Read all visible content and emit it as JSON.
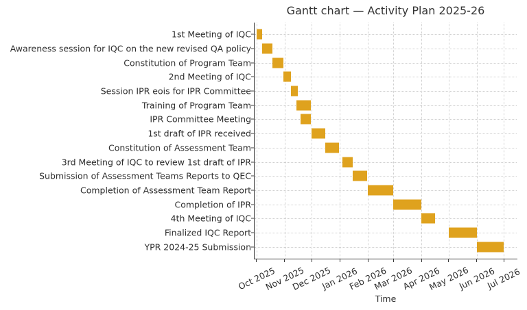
{
  "chart_data": {
    "type": "gantt",
    "title": "Gantt chart — Activity Plan 2025-26",
    "xlabel": "Time",
    "ylabel": "",
    "bar_color": "#DFA21E",
    "grid": "dotted, both axes",
    "legend": "none",
    "x_domain": [
      "2025-09-29",
      "2026-07-15"
    ],
    "x_ticks": [
      {
        "label": "Oct 2025",
        "date": "2025-10-01"
      },
      {
        "label": "Nov 2025",
        "date": "2025-11-01"
      },
      {
        "label": "Dec 2025",
        "date": "2025-12-01"
      },
      {
        "label": "Jan 2026",
        "date": "2026-01-01"
      },
      {
        "label": "Feb 2026",
        "date": "2026-02-01"
      },
      {
        "label": "Mar 2026",
        "date": "2026-03-01"
      },
      {
        "label": "Apr 2026",
        "date": "2026-04-01"
      },
      {
        "label": "May 2026",
        "date": "2026-05-01"
      },
      {
        "label": "Jun 2026",
        "date": "2026-06-01"
      },
      {
        "label": "Jul 2026",
        "date": "2026-07-01"
      }
    ],
    "tasks": [
      {
        "label": "1st Meeting of IQC",
        "start": "2025-10-01",
        "end": "2025-10-07"
      },
      {
        "label": "Awareness session for IQC on the new revised QA policy",
        "start": "2025-10-07",
        "end": "2025-10-19"
      },
      {
        "label": "Constitution of Program Team",
        "start": "2025-10-19",
        "end": "2025-10-31"
      },
      {
        "label": "2nd Meeting of IQC",
        "start": "2025-10-31",
        "end": "2025-11-08"
      },
      {
        "label": "Session IPR eois for IPR Committee",
        "start": "2025-11-08",
        "end": "2025-11-16"
      },
      {
        "label": "Training of Program Team",
        "start": "2025-11-14",
        "end": "2025-11-30"
      },
      {
        "label": "IPR Committee Meeting",
        "start": "2025-11-19",
        "end": "2025-11-30"
      },
      {
        "label": "1st draft of IPR received",
        "start": "2025-12-01",
        "end": "2025-12-16"
      },
      {
        "label": "Constitution of Assessment Team",
        "start": "2025-12-16",
        "end": "2025-12-31"
      },
      {
        "label": "3rd Meeting of IQC to review 1st draft of IPR",
        "start": "2026-01-04",
        "end": "2026-01-15"
      },
      {
        "label": "Submission of Assessment Teams Reports to QEC",
        "start": "2026-01-15",
        "end": "2026-01-31"
      },
      {
        "label": "Completion of Assessment Team Report",
        "start": "2026-02-01",
        "end": "2026-03-01"
      },
      {
        "label": "Completion of IPR",
        "start": "2026-03-01",
        "end": "2026-04-01"
      },
      {
        "label": "4th Meeting of IQC",
        "start": "2026-04-01",
        "end": "2026-04-16"
      },
      {
        "label": "Finalized IQC Report",
        "start": "2026-05-01",
        "end": "2026-06-01"
      },
      {
        "label": "YPR 2024-25 Submission",
        "start": "2026-06-01",
        "end": "2026-07-01"
      }
    ]
  }
}
